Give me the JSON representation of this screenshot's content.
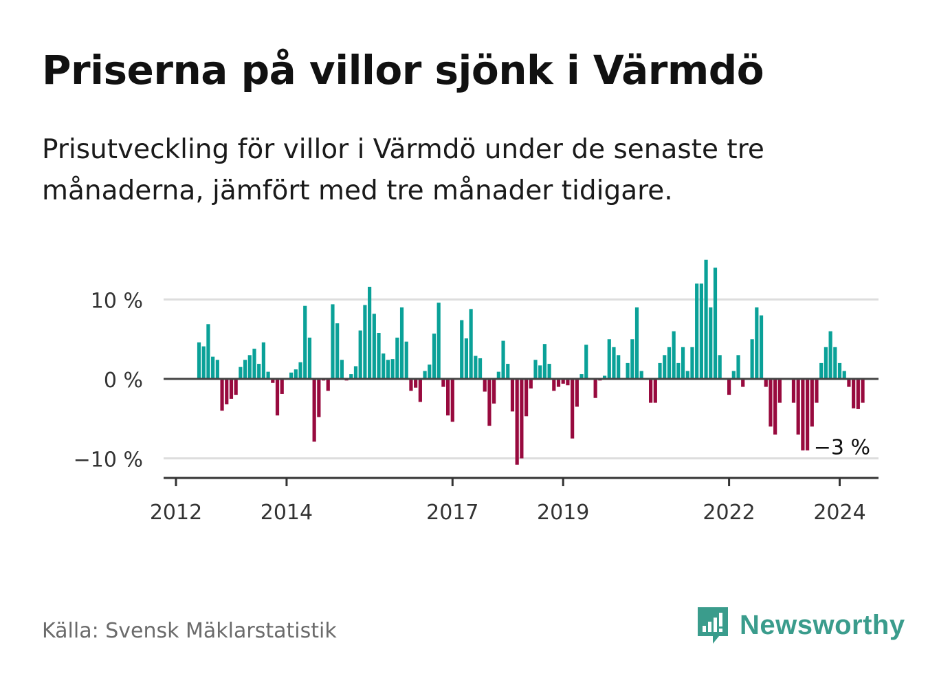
{
  "title": "Priserna på villor sjönk i Värmdö",
  "subtitle": "Prisutveckling för villor i Värmdö under de senaste tre månaderna, jämfört med tre månader tidigare.",
  "source": "Källa: Svensk Mäklarstatistik",
  "brand": {
    "name": "Newsworthy",
    "icon": "newsworthy-logo-icon",
    "color": "#3a9c8c"
  },
  "colors": {
    "positive": "#0aa198",
    "negative": "#980a3e",
    "zero_line": "#444444",
    "grid": "#dddddd"
  },
  "chart_data": {
    "type": "bar",
    "title": "Priserna på villor sjönk i Värmdö",
    "xlabel": "",
    "ylabel": "",
    "unit": "%",
    "ylim": [
      -12.5,
      15.5
    ],
    "yticks": [
      10,
      0,
      -10
    ],
    "ytick_labels": [
      "10 %",
      "0 %",
      "−10 %"
    ],
    "xticks": [
      {
        "label": "2012",
        "index": 0
      },
      {
        "label": "2014",
        "index": 24
      },
      {
        "label": "2017",
        "index": 60
      },
      {
        "label": "2019",
        "index": 84
      },
      {
        "label": "2022",
        "index": 120
      },
      {
        "label": "2024",
        "index": 144
      }
    ],
    "last_value_label": "−3 %",
    "series": [
      {
        "name": "Prisutveckling",
        "start": "2012-01",
        "values": [
          null,
          null,
          null,
          null,
          null,
          4.6,
          4.1,
          6.9,
          2.8,
          2.4,
          -4.0,
          -3.2,
          -2.5,
          -2.0,
          1.5,
          2.4,
          3.0,
          3.8,
          1.9,
          4.6,
          0.9,
          -0.5,
          -4.6,
          -1.9,
          0.0,
          0.8,
          1.2,
          2.1,
          9.2,
          5.2,
          -7.9,
          -4.8,
          -0.2,
          -1.5,
          9.4,
          7.0,
          2.4,
          -0.2,
          0.6,
          1.6,
          6.1,
          9.3,
          11.6,
          8.2,
          5.8,
          3.2,
          2.4,
          2.5,
          5.2,
          9.0,
          4.7,
          -1.5,
          -1.1,
          -2.9,
          1.0,
          1.8,
          5.7,
          9.6,
          -1.0,
          -4.6,
          -5.4,
          0.0,
          7.4,
          5.1,
          8.8,
          2.9,
          2.6,
          -1.6,
          -5.9,
          -3.1,
          0.9,
          4.8,
          1.9,
          -4.1,
          -10.8,
          -10.0,
          -4.7,
          -1.2,
          2.4,
          1.7,
          4.4,
          1.9,
          -1.5,
          -1.0,
          -0.6,
          -0.8,
          -7.5,
          -3.5,
          0.6,
          4.3,
          0.0,
          -2.4,
          -0.2,
          0.4,
          5.0,
          4.0,
          3.0,
          0.0,
          2.0,
          5.0,
          9.0,
          1.0,
          0.0,
          -3.0,
          -3.0,
          2.0,
          3.0,
          4.0,
          6.0,
          2.0,
          4.0,
          1.0,
          4.0,
          12.0,
          12.0,
          15.0,
          9.0,
          14.0,
          3.0,
          0.0,
          -2.0,
          1.0,
          3.0,
          -1.0,
          0.0,
          5.0,
          9.0,
          8.0,
          -1.0,
          -6.0,
          -7.0,
          -3.0,
          0.0,
          0.0,
          -3.0,
          -7.0,
          -9.0,
          -9.0,
          -6.0,
          -3.0,
          2.0,
          4.0,
          6.0,
          4.0,
          2.0,
          1.0,
          -1.0,
          -3.7,
          -3.8,
          -3.0
        ]
      }
    ]
  }
}
